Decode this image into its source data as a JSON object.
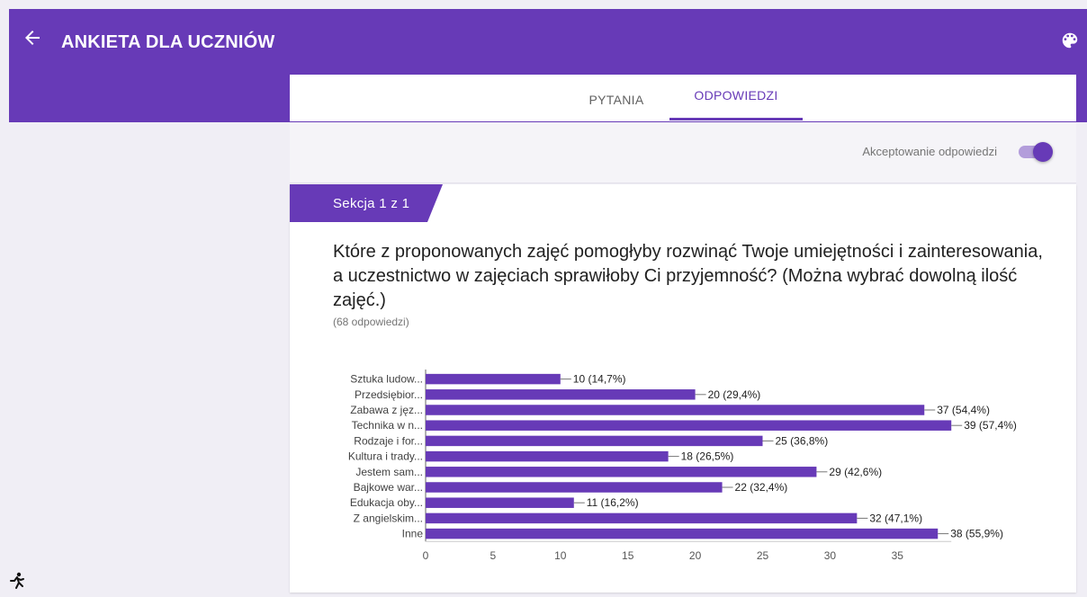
{
  "header": {
    "title": "ANKIETA DLA UCZNIÓW",
    "back_icon": "arrow-left-icon",
    "palette_icon": "palette-icon",
    "color": "#673ab7"
  },
  "tabs": [
    {
      "label": "PYTANIA",
      "active": false
    },
    {
      "label": "ODPOWIEDZI",
      "active": true
    }
  ],
  "accepting": {
    "label": "Akceptowanie odpowiedzi",
    "on": true
  },
  "section": {
    "label": "Sekcja 1 z 1"
  },
  "question": {
    "text": "Które z proponowanych zajęć pomogłyby rozwinąć Twoje umiejętności i zainteresowania, a uczestnictwo w zajęciach sprawiłoby Ci przyjemność? (Można wybrać dowolną ilość zajęć.)",
    "responses": "(68 odpowiedzi)"
  },
  "chart_data": {
    "type": "bar",
    "orientation": "horizontal",
    "categories": [
      "Sztuka ludow...",
      "Przedsiębior...",
      "Zabawa z jęz...",
      "Technika w n...",
      "Rodzaje i for...",
      "Kultura i trady...",
      "Jestem sam...",
      "Bajkowe war...",
      "Edukacja oby...",
      "Z angielskim...",
      "Inne"
    ],
    "values": [
      10,
      20,
      37,
      39,
      25,
      18,
      29,
      22,
      11,
      32,
      38
    ],
    "value_labels": [
      "10 (14,7%)",
      "20 (29,4%)",
      "37 (54,4%)",
      "39 (57,4%)",
      "25 (36,8%)",
      "18 (26,5%)",
      "29 (42,6%)",
      "22 (32,4%)",
      "11 (16,2%)",
      "32 (47,1%)",
      "38 (55,9%)"
    ],
    "xticks": [
      0,
      5,
      10,
      15,
      20,
      25,
      30,
      35
    ],
    "xlim": [
      0,
      39
    ],
    "color": "#673ab7"
  }
}
